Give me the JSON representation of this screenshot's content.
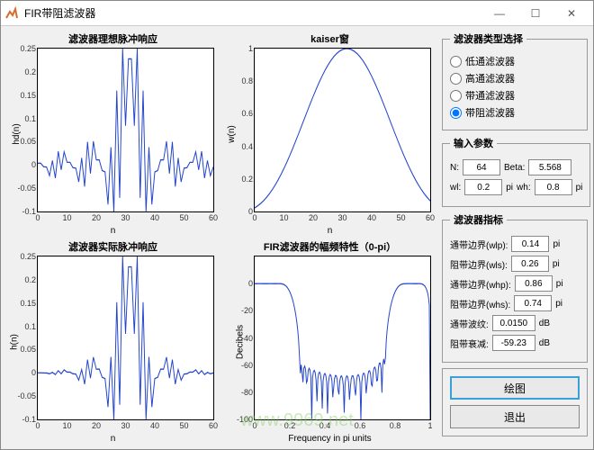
{
  "window": {
    "title": "FIR带阻滤波器"
  },
  "plots": {
    "p1": {
      "title": "滤波器理想脉冲响应",
      "xlabel": "n",
      "ylabel": "hd(n)",
      "xlim": [
        0,
        60
      ],
      "ylim": [
        -0.1,
        0.25
      ],
      "yticks": [
        -0.1,
        -0.05,
        0,
        0.05,
        0.1,
        0.15,
        0.2,
        0.25
      ],
      "xticks": [
        0,
        10,
        20,
        30,
        40,
        50,
        60
      ],
      "color": "#2244cc"
    },
    "p2": {
      "title": "kaiser窗",
      "xlabel": "n",
      "ylabel": "w(n)",
      "xlim": [
        0,
        60
      ],
      "ylim": [
        0,
        1
      ],
      "yticks": [
        0,
        0.2,
        0.4,
        0.6,
        0.8,
        1
      ],
      "xticks": [
        0,
        10,
        20,
        30,
        40,
        50,
        60
      ],
      "color": "#2244cc"
    },
    "p3": {
      "title": "滤波器实际脉冲响应",
      "xlabel": "n",
      "ylabel": "h(n)",
      "xlim": [
        0,
        60
      ],
      "ylim": [
        -0.1,
        0.25
      ],
      "yticks": [
        -0.1,
        -0.05,
        0,
        0.05,
        0.1,
        0.15,
        0.2,
        0.25
      ],
      "xticks": [
        0,
        10,
        20,
        30,
        40,
        50,
        60
      ],
      "color": "#2244cc"
    },
    "p4": {
      "title": "FIR滤波器的幅频特性（0-pi）",
      "xlabel": "Frequency in pi units",
      "ylabel": "Decibels",
      "xlim": [
        0,
        1
      ],
      "ylim": [
        -100,
        20
      ],
      "yticks": [
        -100,
        -80,
        -60,
        -40,
        -20,
        0
      ],
      "xticks": [
        0,
        0.2,
        0.4,
        0.6,
        0.8,
        1
      ],
      "color": "#2244cc"
    }
  },
  "filter_type": {
    "legend": "滤波器类型选择",
    "options": [
      {
        "label": "低通滤波器",
        "value": "lowpass",
        "checked": false
      },
      {
        "label": "高通滤波器",
        "value": "highpass",
        "checked": false
      },
      {
        "label": "带通滤波器",
        "value": "bandpass",
        "checked": false
      },
      {
        "label": "带阻滤波器",
        "value": "bandstop",
        "checked": true
      }
    ]
  },
  "params": {
    "legend": "输入参数",
    "N_label": "N:",
    "N": "64",
    "Beta_label": "Beta:",
    "Beta": "5.568",
    "wl_label": "wl:",
    "wl": "0.2",
    "wh_label": "wh:",
    "wh": "0.8",
    "pi": "pi"
  },
  "specs": {
    "legend": "滤波器指标",
    "wlp_label": "通带边界(wlp):",
    "wlp": "0.14",
    "wls_label": "阻带边界(wls):",
    "wls": "0.26",
    "whp_label": "通带边界(whp):",
    "whp": "0.86",
    "whs_label": "阻带边界(whs):",
    "whs": "0.74",
    "rp_label": "通带波纹:",
    "rp": "0.0150",
    "rs_label": "阻带衰减:",
    "rs": "-59.23",
    "pi": "pi",
    "dB": "dB"
  },
  "buttons": {
    "plot": "绘图",
    "exit": "退出"
  },
  "watermark": "www.9969.net"
}
